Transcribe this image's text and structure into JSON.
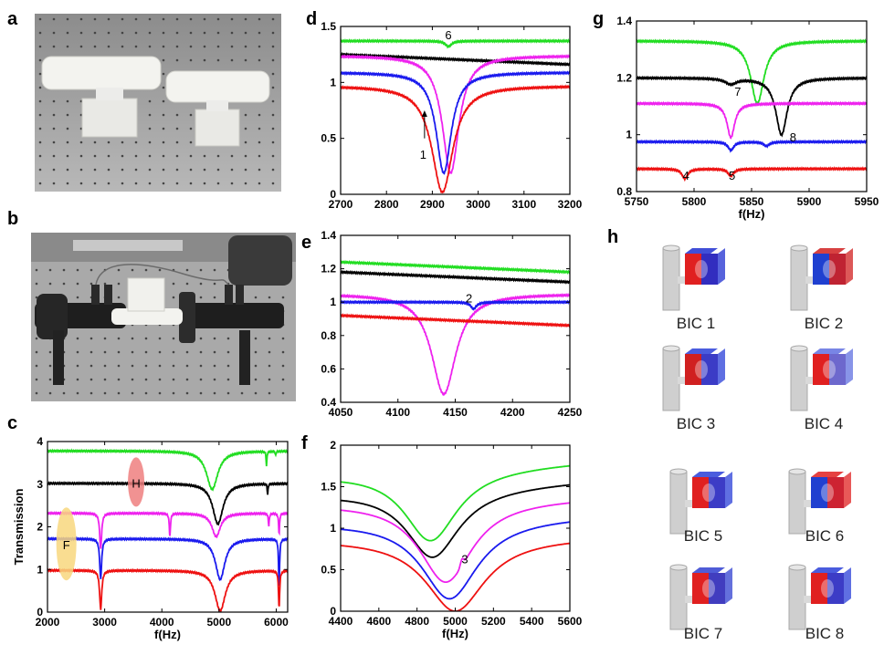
{
  "panel_letters": {
    "a": "a",
    "b": "b",
    "c": "c",
    "d": "d",
    "e": "e",
    "f": "f",
    "g": "g",
    "h": "h"
  },
  "photos": [
    {
      "panel": "a",
      "subject": "two white cylinders mounted on rectangular blocks on an optical table"
    },
    {
      "panel": "b",
      "subject": "sample mounted between two black tubes with microphones on optical table"
    }
  ],
  "colors": {
    "green": "#22dd22",
    "black": "#000000",
    "magenta": "#ee22ee",
    "blue": "#1a1aee",
    "red": "#ee1111",
    "h_marker": "#ef7f7f",
    "f_marker": "#f8d77e"
  },
  "chart_data": [
    {
      "panel": "c",
      "type": "line",
      "xlabel": "f(Hz)",
      "ylabel": "Transmission",
      "xlim": [
        2000,
        6200
      ],
      "ylim": [
        0,
        4
      ],
      "xticks": [
        "2000",
        "3000",
        "4000",
        "5000",
        "6000"
      ],
      "yticks": [
        "0",
        "1",
        "2",
        "3",
        "4"
      ],
      "markers": [
        {
          "label": "H",
          "x": 3550,
          "y": 3.05
        },
        {
          "label": "F",
          "x": 2330,
          "y": 1.6
        }
      ],
      "series": [
        {
          "color": "#22dd22",
          "baseline": 3.78,
          "dips": [
            {
              "x": 4880,
              "depth": 0.9,
              "w": 120
            },
            {
              "x": 5830,
              "depth": 0.35,
              "w": 8
            },
            {
              "x": 5990,
              "depth": 0.1,
              "w": 8
            }
          ]
        },
        {
          "color": "#000000",
          "baseline": 3.02,
          "dips": [
            {
              "x": 4980,
              "depth": 0.95,
              "w": 110
            },
            {
              "x": 5850,
              "depth": 0.25,
              "w": 8
            }
          ]
        },
        {
          "color": "#ee22ee",
          "baseline": 2.32,
          "dips": [
            {
              "x": 2930,
              "depth": 0.85,
              "w": 20
            },
            {
              "x": 4140,
              "depth": 0.55,
              "w": 12
            },
            {
              "x": 4950,
              "depth": 0.55,
              "w": 90
            },
            {
              "x": 5870,
              "depth": 0.3,
              "w": 10
            },
            {
              "x": 6050,
              "depth": 0.5,
              "w": 10
            }
          ]
        },
        {
          "color": "#1a1aee",
          "baseline": 1.72,
          "dips": [
            {
              "x": 2930,
              "depth": 0.95,
              "w": 20
            },
            {
              "x": 5020,
              "depth": 0.95,
              "w": 100
            },
            {
              "x": 6050,
              "depth": 1.2,
              "w": 10
            }
          ]
        },
        {
          "color": "#ee1111",
          "baseline": 0.98,
          "dips": [
            {
              "x": 2930,
              "depth": 0.92,
              "w": 22
            },
            {
              "x": 5020,
              "depth": 0.95,
              "w": 110
            },
            {
              "x": 6050,
              "depth": 0.9,
              "w": 12
            }
          ]
        }
      ]
    },
    {
      "panel": "d",
      "type": "line",
      "xlabel": "",
      "ylabel": "",
      "xlim": [
        2700,
        3200
      ],
      "ylim": [
        0,
        1.5
      ],
      "xticks": [
        "2700",
        "2800",
        "2900",
        "3000",
        "3100",
        "3200"
      ],
      "yticks": [
        "0",
        "0.5",
        "1",
        "1.5"
      ],
      "annotations": [
        {
          "text": "6",
          "x": 2935,
          "y": 1.42
        },
        {
          "text": "1",
          "x": 2880,
          "y": 0.35
        }
      ],
      "arrow": {
        "x": 2883,
        "y_from": 0.5,
        "y_to": 0.75
      },
      "series": [
        {
          "color": "#22dd22",
          "baseline": 1.37,
          "dips": [
            {
              "x": 2935,
              "depth": 0.05,
              "w": 8
            }
          ]
        },
        {
          "color": "#000000",
          "baseline": 1.25,
          "slope": true,
          "dips": []
        },
        {
          "color": "#ee22ee",
          "baseline": 1.24,
          "dips": [
            {
              "x": 2940,
              "depth": 1.05,
              "w": 22
            }
          ]
        },
        {
          "color": "#1a1aee",
          "baseline": 1.09,
          "dips": [
            {
              "x": 2925,
              "depth": 0.9,
              "w": 20
            }
          ]
        },
        {
          "color": "#ee1111",
          "baseline": 0.97,
          "dips": [
            {
              "x": 2922,
              "depth": 0.95,
              "w": 28
            }
          ]
        }
      ]
    },
    {
      "panel": "e",
      "type": "line",
      "xlabel": "",
      "ylabel": "",
      "xlim": [
        4050,
        4250
      ],
      "ylim": [
        0.4,
        1.4
      ],
      "xticks": [
        "4050",
        "4100",
        "4150",
        "4200",
        "4250"
      ],
      "yticks": [
        "0.4",
        "0.6",
        "0.8",
        "1",
        "1.2",
        "1.4"
      ],
      "annotations": [
        {
          "text": "2",
          "x": 4162,
          "y": 1.02
        }
      ],
      "series": [
        {
          "color": "#22dd22",
          "baseline": 1.24,
          "slope": true,
          "dips": []
        },
        {
          "color": "#000000",
          "baseline": 1.18,
          "slope": true,
          "dips": []
        },
        {
          "color": "#ee22ee",
          "baseline": 1.05,
          "dips": [
            {
              "x": 4140,
              "depth": 0.6,
              "w": 13
            }
          ]
        },
        {
          "color": "#1a1aee",
          "baseline": 1.0,
          "dips": [
            {
              "x": 4166,
              "depth": 0.04,
              "w": 3
            }
          ]
        },
        {
          "color": "#ee1111",
          "baseline": 0.92,
          "slope": true,
          "dips": []
        }
      ]
    },
    {
      "panel": "f",
      "type": "line",
      "xlabel": "f(Hz)",
      "ylabel": "",
      "xlim": [
        4400,
        5600
      ],
      "ylim": [
        0,
        2
      ],
      "xticks": [
        "4400",
        "4600",
        "4800",
        "5000",
        "5200",
        "5400",
        "5600"
      ],
      "yticks": [
        "0",
        "0.5",
        "1",
        "1.5",
        "2"
      ],
      "annotations": [
        {
          "text": "3",
          "x": 5050,
          "y": 0.62
        }
      ],
      "series": [
        {
          "color": "#22dd22",
          "center": 4870,
          "top": 1.8,
          "left": 1.65,
          "bottom": 0.85,
          "w": 170
        },
        {
          "color": "#000000",
          "center": 4880,
          "top": 1.57,
          "left": 1.42,
          "bottom": 0.65,
          "w": 170
        },
        {
          "color": "#ee22ee",
          "center": 4950,
          "top": 1.37,
          "left": 1.3,
          "bottom": 0.35,
          "w": 170
        },
        {
          "color": "#1a1aee",
          "center": 4970,
          "top": 1.15,
          "left": 1.07,
          "bottom": 0.15,
          "w": 180
        },
        {
          "color": "#ee1111",
          "center": 5000,
          "top": 0.9,
          "left": 0.87,
          "bottom": 0.0,
          "w": 190
        }
      ]
    },
    {
      "panel": "g",
      "type": "line",
      "xlabel": "f(Hz)",
      "ylabel": "",
      "xlim": [
        5750,
        5950
      ],
      "ylim": [
        0.8,
        1.4
      ],
      "xticks": [
        "5750",
        "5800",
        "5850",
        "5900",
        "5950"
      ],
      "yticks": [
        "0.8",
        "1",
        "1.2",
        "1.4"
      ],
      "annotations": [
        {
          "text": "7",
          "x": 5838,
          "y": 1.15
        },
        {
          "text": "8",
          "x": 5886,
          "y": 0.99
        },
        {
          "text": "4",
          "x": 5793,
          "y": 0.855
        },
        {
          "text": "5",
          "x": 5833,
          "y": 0.855
        }
      ],
      "series": [
        {
          "color": "#22dd22",
          "baseline": 1.33,
          "dips": [
            {
              "x": 5855,
              "depth": 0.22,
              "w": 7
            }
          ]
        },
        {
          "color": "#000000",
          "baseline": 1.2,
          "dips": [
            {
              "x": 5832,
              "depth": 0.02,
              "w": 6
            },
            {
              "x": 5876,
              "depth": 0.2,
              "w": 6
            }
          ]
        },
        {
          "color": "#ee22ee",
          "baseline": 1.11,
          "dips": [
            {
              "x": 5832,
              "depth": 0.12,
              "w": 4
            }
          ]
        },
        {
          "color": "#1a1aee",
          "baseline": 0.975,
          "dips": [
            {
              "x": 5832,
              "depth": 0.03,
              "w": 3
            },
            {
              "x": 5863,
              "depth": 0.015,
              "w": 3
            }
          ]
        },
        {
          "color": "#ee1111",
          "baseline": 0.88,
          "dips": [
            {
              "x": 5792,
              "depth": 0.035,
              "w": 3
            },
            {
              "x": 5832,
              "depth": 0.025,
              "w": 3
            }
          ]
        }
      ]
    }
  ],
  "bic_labels": [
    "BIC 1",
    "BIC 2",
    "BIC 3",
    "BIC 4",
    "BIC 5",
    "BIC 6",
    "BIC 7",
    "BIC 8"
  ]
}
